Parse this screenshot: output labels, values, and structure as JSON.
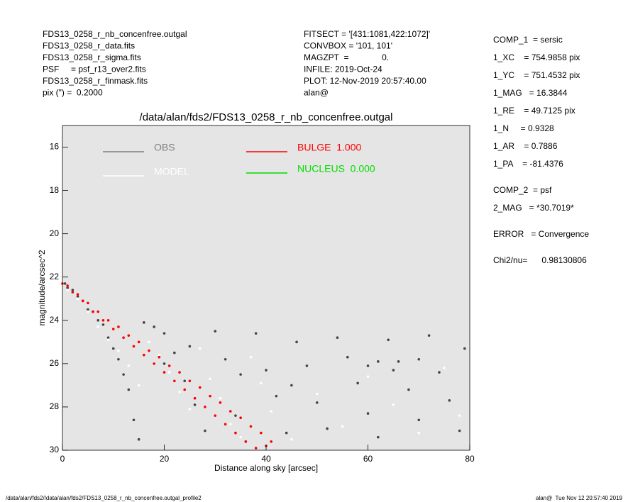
{
  "header": {
    "left": [
      "FDS13_0258_r_nb_concenfree.outgal",
      "FDS13_0258_r_data.fits",
      "FDS13_0258_r_sigma.fits",
      "PSF     = psf_r13_over2.fits",
      "FDS13_0258_r_finmask.fits",
      "pix (\") =  0.2000"
    ],
    "middle": [
      "FITSECT = '[431:1081,422:1072]'",
      "CONVBOX = '101, 101'",
      "MAGZPT  =              0.",
      "INFILE: 2019-Oct-24",
      "PLOT: 12-Nov-2019 20:57:40.00",
      "alan@"
    ]
  },
  "sidebar": [
    [
      "COMP_1  = sersic",
      "1_XC    = 754.9858 pix",
      "1_YC    = 751.4532 pix",
      "1_MAG   = 16.3844",
      "1_RE    = 49.7125 pix",
      "1_N     = 0.9328",
      "1_AR    = 0.7886",
      "1_PA    = -81.4376"
    ],
    [
      "COMP_2  = psf",
      "2_MAG   = *30.7019*"
    ],
    [
      "ERROR   = Convergence"
    ],
    [
      "Chi2/nu=      0.98130806"
    ]
  ],
  "footer": {
    "left": "/data/alan/fds2//data/alan/fds2/FDS13_0258_r_nb_concenfree.outgal_profile2",
    "right": "alan@  Tue Nov 12 20:57:40 2019"
  },
  "chart_data": {
    "type": "scatter",
    "title": "/data/alan/fds2/FDS13_0258_r_nb_concenfree.outgal",
    "x_label": "Distance along sky [arcsec]",
    "y_label": "magnitude/arcsec^2",
    "xlim": [
      0,
      80
    ],
    "ylim": [
      15,
      30
    ],
    "y_inverted": true,
    "xticks": [
      0,
      20,
      40,
      60,
      80
    ],
    "yticks": [
      16,
      18,
      20,
      22,
      24,
      26,
      28,
      30
    ],
    "background": "#e5e5e5",
    "series": [
      {
        "name": "OBS",
        "color": "#808080",
        "point_color": "#444444",
        "x": [
          0.5,
          1,
          2,
          3,
          4,
          5,
          6,
          7,
          8,
          9,
          10,
          11,
          12,
          13,
          14,
          15,
          16,
          18,
          20,
          22,
          24,
          26,
          28,
          30,
          32,
          34,
          36,
          38,
          40,
          42,
          44,
          46,
          48,
          50,
          52,
          54,
          56,
          58,
          60,
          62,
          64,
          66,
          68,
          70,
          72,
          74,
          76,
          78,
          79,
          60,
          62,
          65,
          70,
          20,
          25,
          35,
          45
        ],
        "values": [
          22.3,
          22.5,
          22.6,
          22.9,
          23.1,
          23.5,
          23.6,
          24.0,
          24.2,
          24.8,
          25.3,
          25.8,
          26.5,
          27.2,
          28.6,
          29.5,
          24.1,
          24.3,
          24.6,
          25.5,
          26.8,
          27.9,
          29.1,
          24.5,
          25.8,
          28.4,
          29.6,
          24.6,
          26.3,
          27.5,
          29.2,
          25.0,
          26.1,
          27.8,
          29.0,
          24.8,
          25.7,
          26.9,
          28.3,
          29.4,
          24.9,
          25.9,
          27.2,
          28.6,
          24.7,
          26.4,
          27.7,
          29.1,
          25.3,
          26.1,
          25.9,
          26.3,
          25.8,
          26.0,
          25.2,
          26.5,
          27.0
        ]
      },
      {
        "name": "MODEL",
        "color": "#ffffff",
        "point_color": "#ffffff",
        "x": [
          1,
          3,
          5,
          7,
          9,
          11,
          13,
          15,
          17,
          19,
          21,
          23,
          25,
          27,
          29,
          31,
          33,
          35,
          37,
          39,
          41,
          45,
          50,
          55,
          60,
          65,
          70,
          75,
          78
        ],
        "values": [
          22.6,
          23.0,
          23.6,
          24.3,
          24.9,
          25.4,
          26.1,
          27.0,
          25.0,
          25.6,
          26.4,
          27.3,
          28.1,
          25.3,
          26.7,
          27.6,
          28.8,
          29.4,
          25.7,
          26.9,
          28.2,
          29.5,
          27.4,
          28.9,
          26.6,
          27.9,
          29.2,
          26.2,
          28.4
        ]
      },
      {
        "name": "BULGE  1.000",
        "color": "#ff0000",
        "point_color": "#ff0000",
        "x": [
          0,
          2,
          4,
          6,
          8,
          10,
          12,
          14,
          16,
          18,
          20,
          22,
          24,
          26,
          28,
          30,
          32,
          34,
          36,
          38,
          40,
          1,
          3,
          5,
          7,
          9,
          11,
          13,
          15,
          17,
          19,
          21,
          23,
          25,
          27,
          29,
          31,
          33,
          35,
          37,
          39,
          41
        ],
        "values": [
          22.3,
          22.7,
          23.1,
          23.6,
          24.0,
          24.4,
          24.8,
          25.2,
          25.6,
          26.0,
          26.4,
          26.8,
          27.2,
          27.6,
          28.0,
          28.4,
          28.8,
          29.2,
          29.6,
          29.9,
          29.8,
          22.4,
          22.8,
          23.2,
          23.6,
          24.0,
          24.3,
          24.7,
          25.0,
          25.4,
          25.7,
          26.1,
          26.4,
          26.8,
          27.1,
          27.5,
          27.8,
          28.2,
          28.5,
          28.9,
          29.2,
          29.6
        ]
      },
      {
        "name": "NUCLEUS  0.000",
        "color": "#00dd00",
        "point_color": "#00dd00",
        "x": [],
        "values": []
      }
    ]
  }
}
